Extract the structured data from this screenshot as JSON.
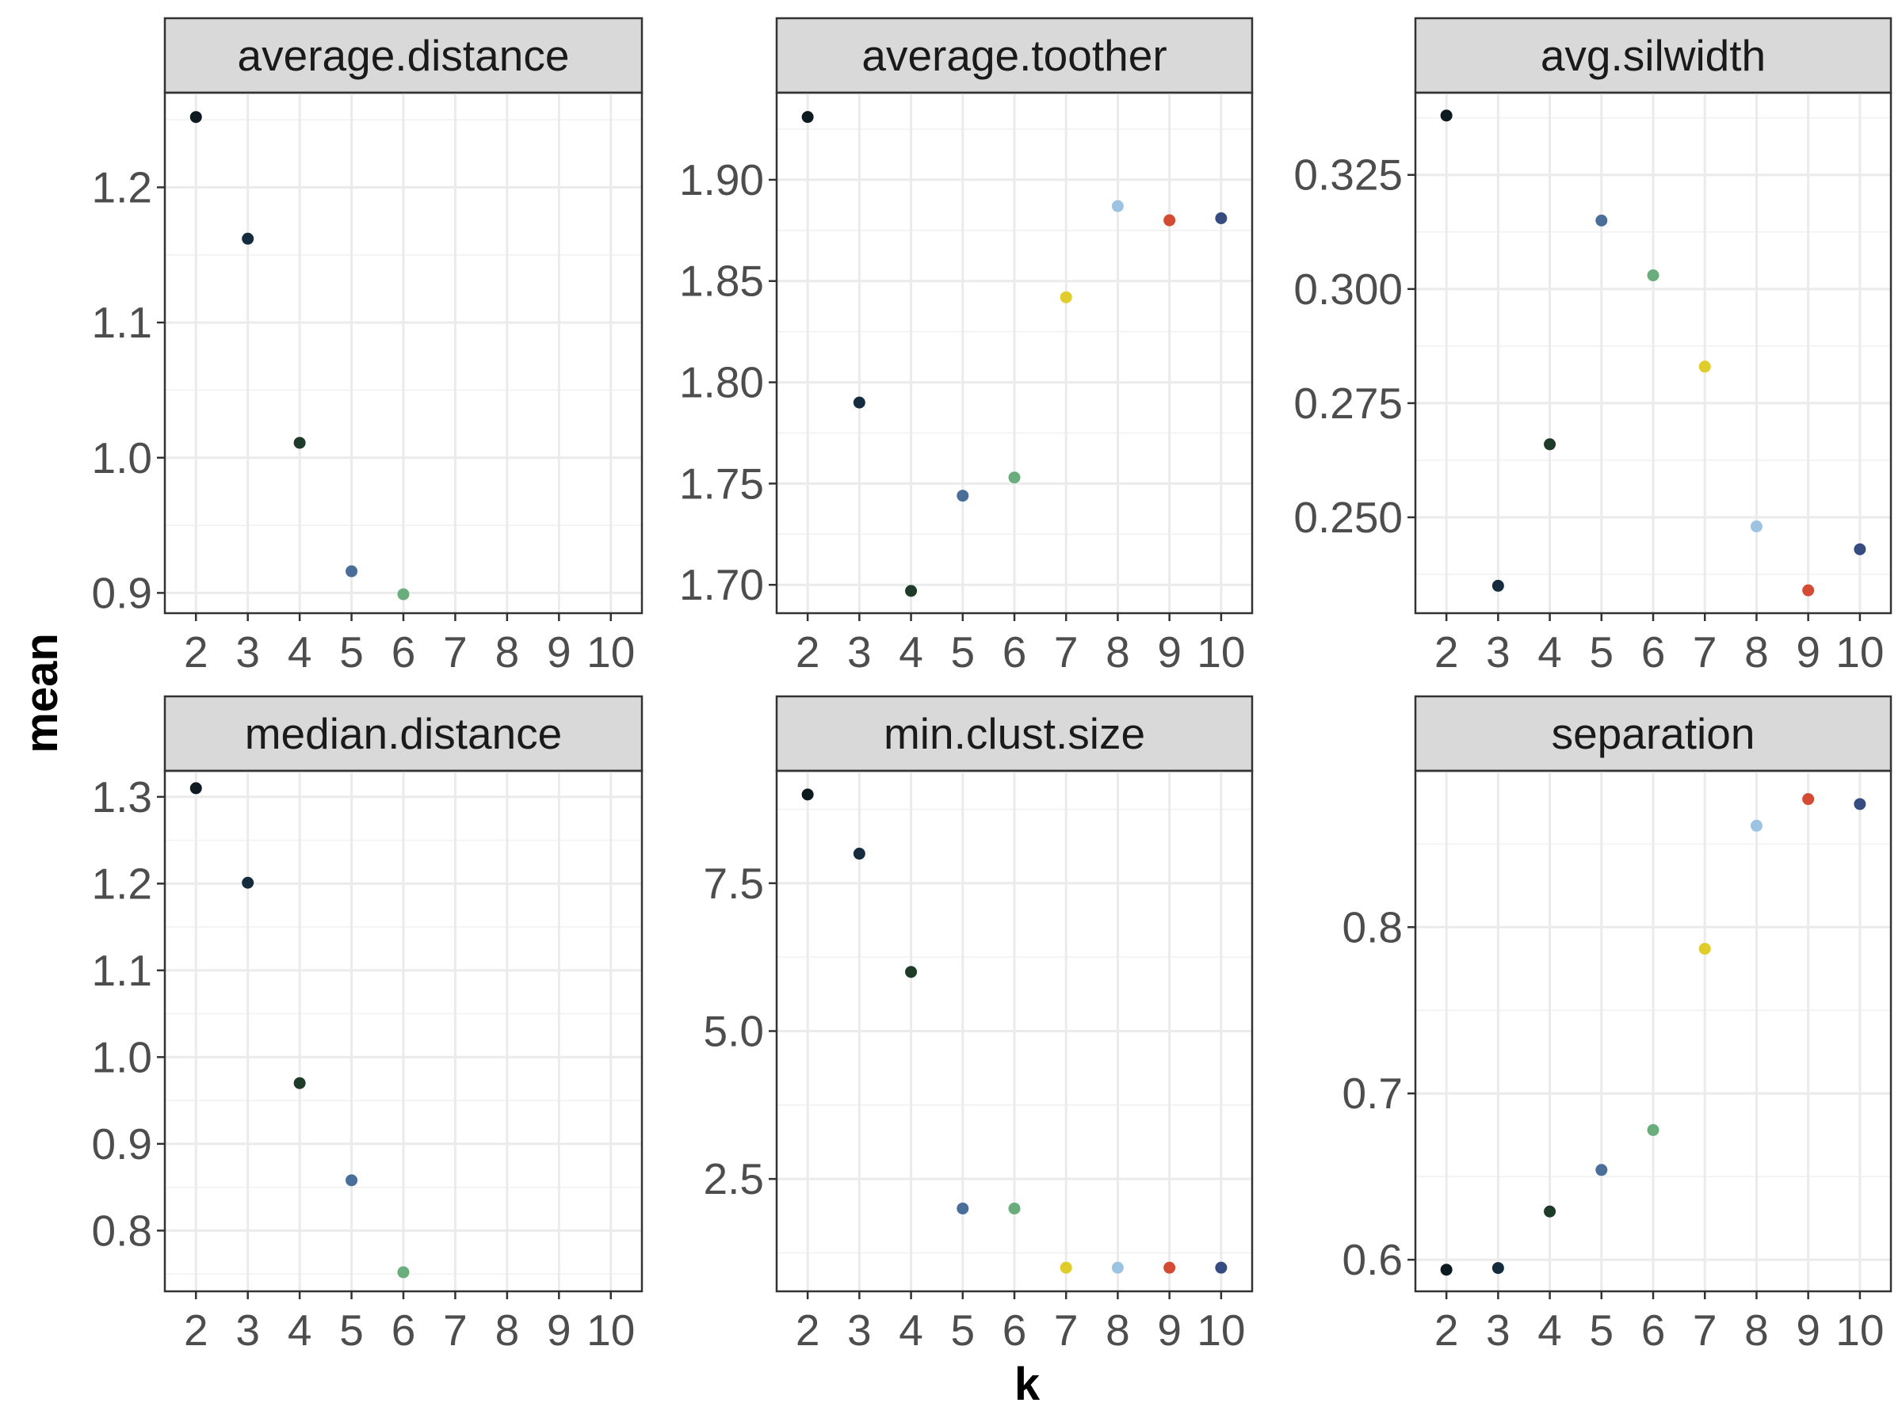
{
  "figure": {
    "ylabel": "mean",
    "xlabel": "k"
  },
  "chart_data": {
    "type": "scatter",
    "facet_layout": "2x3",
    "grid": true,
    "x_categories": [
      "2",
      "3",
      "4",
      "5",
      "6",
      "7",
      "8",
      "9",
      "10"
    ],
    "colors": {
      "2": "#0d1a1f",
      "3": "#142c3d",
      "4": "#1e3b2a",
      "5": "#4a6e9a",
      "6": "#6aad7c",
      "7": "#e0cc2a",
      "8": "#9cc3e2",
      "9": "#d44a32",
      "10": "#364c80"
    },
    "panels": [
      {
        "title": "average.distance",
        "ylim": [
          0.885,
          1.27
        ],
        "yticks": [
          0.9,
          1.0,
          1.1,
          1.2
        ],
        "yticklabels": [
          "0.9",
          "1.0",
          "1.1",
          "1.2"
        ],
        "points": [
          {
            "x": "2",
            "y": 1.252
          },
          {
            "x": "3",
            "y": 1.162
          },
          {
            "x": "4",
            "y": 1.011
          },
          {
            "x": "5",
            "y": 0.916
          },
          {
            "x": "6",
            "y": 0.899
          }
        ]
      },
      {
        "title": "average.toother",
        "ylim": [
          1.686,
          1.943
        ],
        "yticks": [
          1.7,
          1.75,
          1.8,
          1.85,
          1.9
        ],
        "yticklabels": [
          "1.70",
          "1.75",
          "1.80",
          "1.85",
          "1.90"
        ],
        "points": [
          {
            "x": "2",
            "y": 1.931
          },
          {
            "x": "3",
            "y": 1.79
          },
          {
            "x": "4",
            "y": 1.697
          },
          {
            "x": "5",
            "y": 1.744
          },
          {
            "x": "6",
            "y": 1.753
          },
          {
            "x": "7",
            "y": 1.842
          },
          {
            "x": "8",
            "y": 1.887
          },
          {
            "x": "9",
            "y": 1.88
          },
          {
            "x": "10",
            "y": 1.881
          }
        ]
      },
      {
        "title": "avg.silwidth",
        "ylim": [
          0.229,
          0.343
        ],
        "yticks": [
          0.25,
          0.275,
          0.3,
          0.325
        ],
        "yticklabels": [
          "0.250",
          "0.275",
          "0.300",
          "0.325"
        ],
        "points": [
          {
            "x": "2",
            "y": 0.338
          },
          {
            "x": "3",
            "y": 0.235
          },
          {
            "x": "4",
            "y": 0.266
          },
          {
            "x": "5",
            "y": 0.315
          },
          {
            "x": "6",
            "y": 0.303
          },
          {
            "x": "7",
            "y": 0.283
          },
          {
            "x": "8",
            "y": 0.248
          },
          {
            "x": "9",
            "y": 0.234
          },
          {
            "x": "10",
            "y": 0.243
          }
        ]
      },
      {
        "title": "median.distance",
        "ylim": [
          0.73,
          1.33
        ],
        "yticks": [
          0.8,
          0.9,
          1.0,
          1.1,
          1.2,
          1.3
        ],
        "yticklabels": [
          "0.8",
          "0.9",
          "1.0",
          "1.1",
          "1.2",
          "1.3"
        ],
        "points": [
          {
            "x": "2",
            "y": 1.31
          },
          {
            "x": "3",
            "y": 1.201
          },
          {
            "x": "4",
            "y": 0.97
          },
          {
            "x": "5",
            "y": 0.858
          },
          {
            "x": "6",
            "y": 0.752
          }
        ]
      },
      {
        "title": "min.clust.size",
        "ylim": [
          0.6,
          9.4
        ],
        "yticks": [
          2.5,
          5.0,
          7.5
        ],
        "yticklabels": [
          "2.5",
          "5.0",
          "7.5"
        ],
        "points": [
          {
            "x": "2",
            "y": 9
          },
          {
            "x": "3",
            "y": 8
          },
          {
            "x": "4",
            "y": 6
          },
          {
            "x": "5",
            "y": 2
          },
          {
            "x": "6",
            "y": 2
          },
          {
            "x": "7",
            "y": 1
          },
          {
            "x": "8",
            "y": 1
          },
          {
            "x": "9",
            "y": 1
          },
          {
            "x": "10",
            "y": 1
          }
        ]
      },
      {
        "title": "separation",
        "ylim": [
          0.581,
          0.894
        ],
        "yticks": [
          0.6,
          0.7,
          0.8
        ],
        "yticklabels": [
          "0.6",
          "0.7",
          "0.8"
        ],
        "points": [
          {
            "x": "2",
            "y": 0.594
          },
          {
            "x": "3",
            "y": 0.595
          },
          {
            "x": "4",
            "y": 0.629
          },
          {
            "x": "5",
            "y": 0.654
          },
          {
            "x": "6",
            "y": 0.678
          },
          {
            "x": "7",
            "y": 0.787
          },
          {
            "x": "8",
            "y": 0.861
          },
          {
            "x": "9",
            "y": 0.877
          },
          {
            "x": "10",
            "y": 0.874
          }
        ]
      }
    ]
  }
}
